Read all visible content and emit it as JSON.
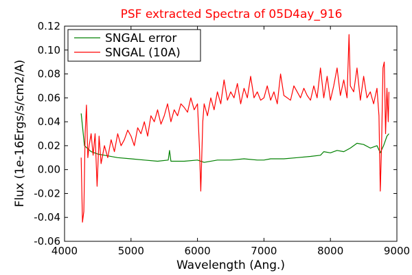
{
  "chart_data": {
    "type": "line",
    "title": "PSF extracted Spectra of 05D4ay_916",
    "xlabel": "Wavelength (Ang.)",
    "ylabel": "Flux (1e-16Ergs/s/cm2/A)",
    "xlim": [
      4000,
      9000
    ],
    "ylim": [
      -0.06,
      0.12
    ],
    "xticks": [
      "4000",
      "5000",
      "6000",
      "7000",
      "8000",
      "9000"
    ],
    "yticks": [
      "-0.06",
      "-0.04",
      "-0.02",
      "0.00",
      "0.02",
      "0.04",
      "0.06",
      "0.08",
      "0.10",
      "0.12"
    ],
    "legend_position": "top-left",
    "grid": false,
    "series": [
      {
        "name": "SNGAL error",
        "color": "#008000",
        "x": [
          4250,
          4300,
          4400,
          4500,
          4600,
          4800,
          5000,
          5200,
          5400,
          5560,
          5580,
          5600,
          5800,
          6000,
          6100,
          6300,
          6500,
          6700,
          6900,
          7000,
          7100,
          7300,
          7500,
          7700,
          7850,
          7900,
          8000,
          8100,
          8200,
          8300,
          8400,
          8500,
          8600,
          8700,
          8750,
          8800,
          8850,
          8880
        ],
        "y": [
          0.047,
          0.02,
          0.015,
          0.013,
          0.012,
          0.01,
          0.009,
          0.008,
          0.007,
          0.008,
          0.016,
          0.007,
          0.007,
          0.008,
          0.006,
          0.008,
          0.008,
          0.009,
          0.008,
          0.008,
          0.009,
          0.009,
          0.01,
          0.011,
          0.012,
          0.015,
          0.014,
          0.016,
          0.015,
          0.018,
          0.022,
          0.021,
          0.018,
          0.02,
          0.014,
          0.02,
          0.028,
          0.03
        ]
      },
      {
        "name": "SNGAL (10A)",
        "color": "#ff0000",
        "x": [
          4250,
          4270,
          4290,
          4310,
          4330,
          4350,
          4370,
          4400,
          4430,
          4460,
          4490,
          4520,
          4550,
          4600,
          4650,
          4700,
          4750,
          4800,
          4850,
          4900,
          4950,
          5000,
          5050,
          5100,
          5150,
          5200,
          5250,
          5300,
          5350,
          5400,
          5450,
          5500,
          5550,
          5600,
          5650,
          5700,
          5750,
          5800,
          5850,
          5900,
          5950,
          6000,
          6030,
          6050,
          6080,
          6100,
          6150,
          6200,
          6250,
          6300,
          6350,
          6400,
          6450,
          6500,
          6550,
          6600,
          6650,
          6700,
          6750,
          6800,
          6850,
          6900,
          6950,
          7000,
          7050,
          7100,
          7150,
          7200,
          7250,
          7300,
          7350,
          7400,
          7450,
          7500,
          7550,
          7600,
          7650,
          7700,
          7750,
          7800,
          7850,
          7900,
          7950,
          8000,
          8050,
          8100,
          8150,
          8200,
          8250,
          8280,
          8300,
          8350,
          8400,
          8450,
          8500,
          8550,
          8600,
          8650,
          8700,
          8730,
          8750,
          8770,
          8790,
          8810,
          8830,
          8850,
          8870,
          8880
        ],
        "y": [
          0.01,
          -0.044,
          -0.035,
          0.03,
          0.054,
          0.01,
          0.02,
          0.03,
          0.012,
          0.03,
          -0.014,
          0.028,
          0.005,
          0.02,
          0.01,
          0.025,
          0.015,
          0.03,
          0.02,
          0.025,
          0.033,
          0.028,
          0.02,
          0.035,
          0.03,
          0.04,
          0.028,
          0.045,
          0.04,
          0.05,
          0.038,
          0.045,
          0.055,
          0.04,
          0.05,
          0.045,
          0.055,
          0.052,
          0.048,
          0.06,
          0.05,
          0.055,
          0.018,
          -0.018,
          0.04,
          0.055,
          0.045,
          0.06,
          0.05,
          0.065,
          0.055,
          0.075,
          0.058,
          0.065,
          0.06,
          0.072,
          0.055,
          0.068,
          0.06,
          0.078,
          0.06,
          0.065,
          0.058,
          0.06,
          0.07,
          0.058,
          0.065,
          0.055,
          0.08,
          0.062,
          0.06,
          0.058,
          0.07,
          0.065,
          0.06,
          0.068,
          0.062,
          0.058,
          0.07,
          0.06,
          0.085,
          0.06,
          0.078,
          0.058,
          0.07,
          0.085,
          0.062,
          0.075,
          0.06,
          0.113,
          0.07,
          0.065,
          0.085,
          0.058,
          0.078,
          0.06,
          0.065,
          0.055,
          0.068,
          0.045,
          -0.018,
          0.02,
          0.085,
          0.09,
          0.03,
          0.068,
          0.04,
          0.065
        ]
      }
    ]
  }
}
